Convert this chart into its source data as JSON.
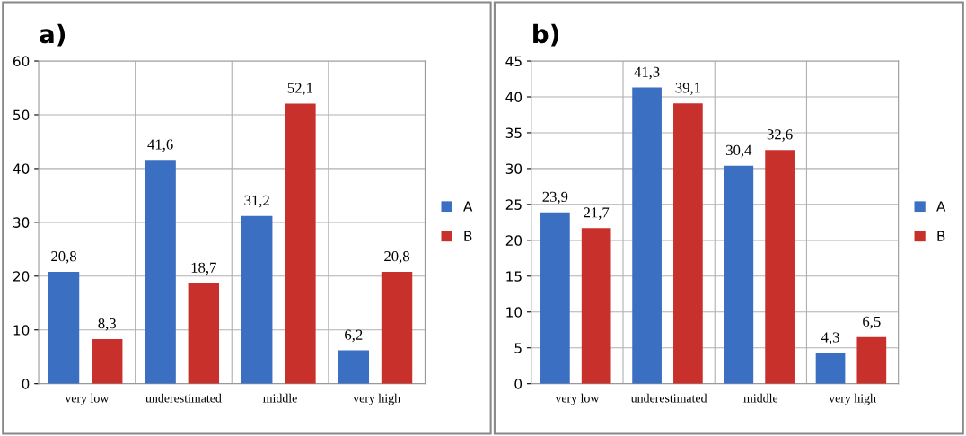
{
  "chart_data": [
    {
      "type": "bar",
      "title": "a)",
      "categories": [
        "very low",
        "underestimated",
        "middle",
        "very high"
      ],
      "series": [
        {
          "name": "A",
          "color": "#3b6fc2",
          "values": [
            20.8,
            41.6,
            31.2,
            6.2
          ],
          "value_labels": [
            "20,8",
            "41,6",
            "31,2",
            "6,2"
          ]
        },
        {
          "name": "B",
          "color": "#c8302c",
          "values": [
            8.3,
            18.7,
            52.1,
            20.8
          ],
          "value_labels": [
            "8,3",
            "18,7",
            "52,1",
            "20,8"
          ]
        }
      ],
      "ylim": [
        0,
        60
      ],
      "yticks": [
        0,
        10,
        20,
        30,
        40,
        50,
        60
      ],
      "grid": true,
      "legend": "right"
    },
    {
      "type": "bar",
      "title": "b)",
      "categories": [
        "very low",
        "underestimated",
        "middle",
        "very high"
      ],
      "series": [
        {
          "name": "A",
          "color": "#3b6fc2",
          "values": [
            23.9,
            41.3,
            30.4,
            4.3
          ],
          "value_labels": [
            "23,9",
            "41,3",
            "30,4",
            "4,3"
          ]
        },
        {
          "name": "B",
          "color": "#c8302c",
          "values": [
            21.7,
            39.1,
            32.6,
            6.5
          ],
          "value_labels": [
            "21,7",
            "39,1",
            "32,6",
            "6,5"
          ]
        }
      ],
      "ylim": [
        0,
        45
      ],
      "yticks": [
        0,
        5,
        10,
        15,
        20,
        25,
        30,
        35,
        40,
        45
      ],
      "grid": true,
      "legend": "right"
    }
  ]
}
